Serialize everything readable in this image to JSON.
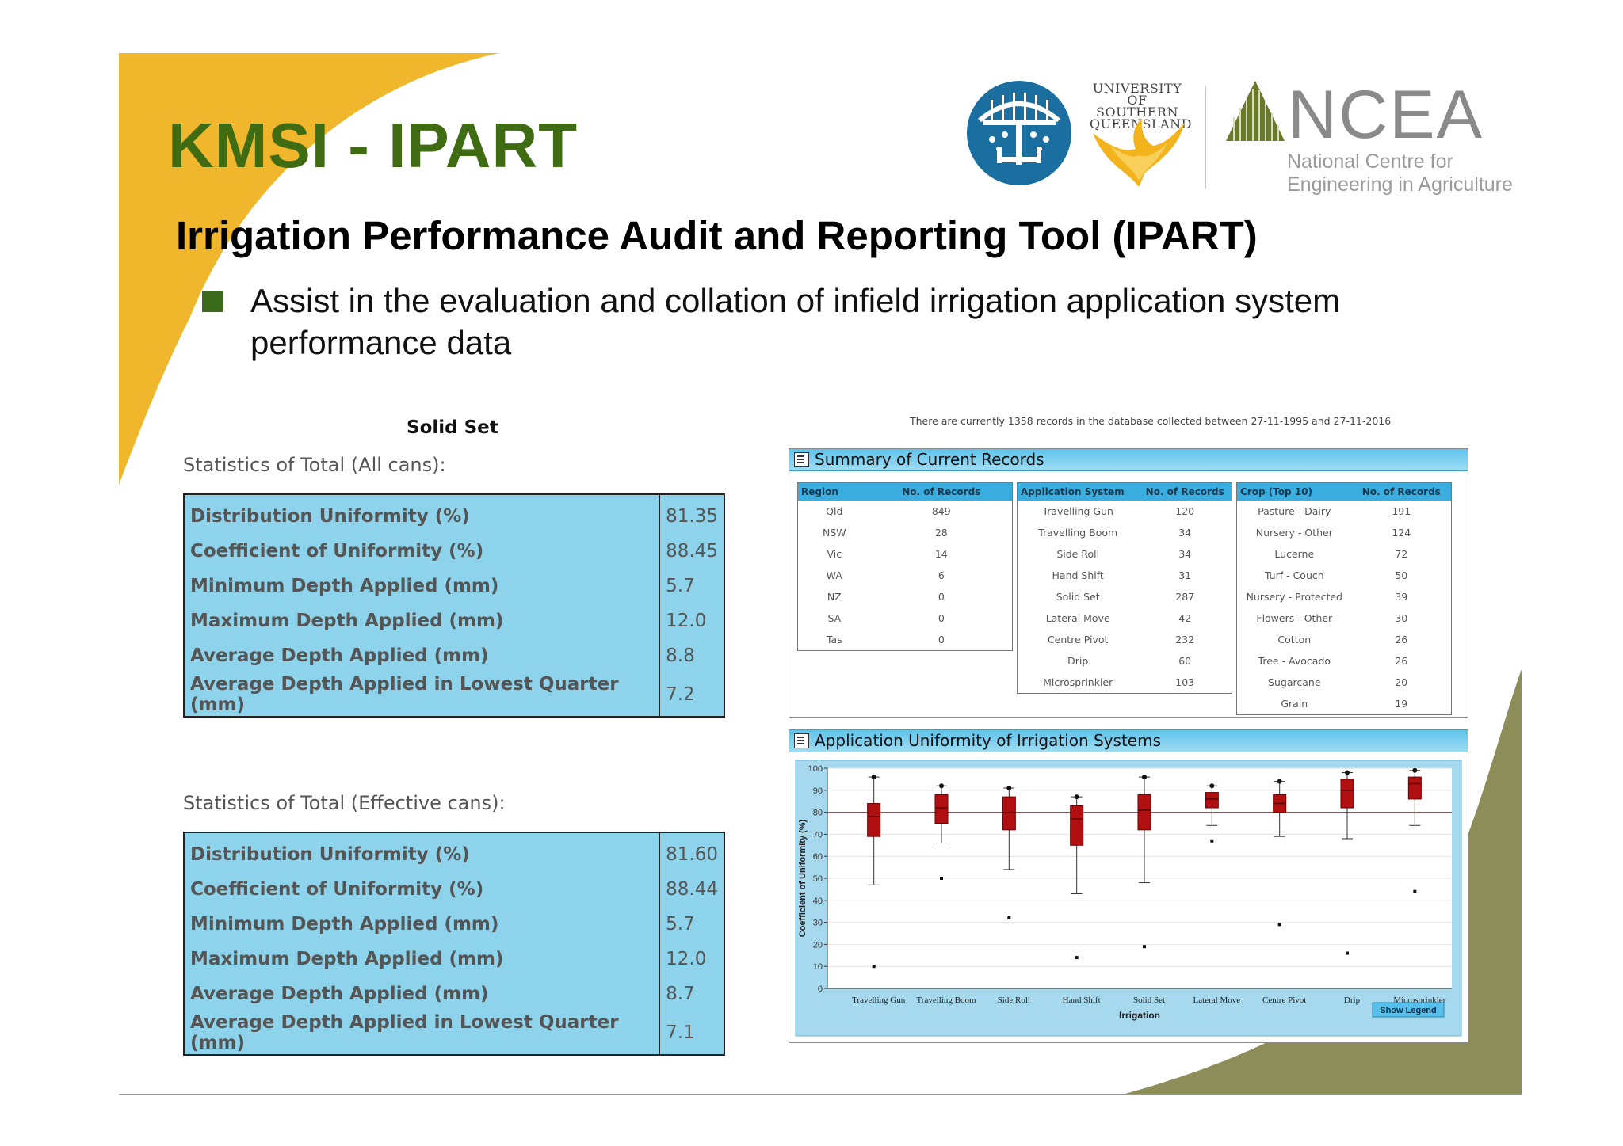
{
  "slide": {
    "title": "KMSI - IPART",
    "subtitle": "Irrigation Performance Audit and Reporting Tool (IPART)",
    "bullet": "Assist in the evaluation and collation of infield irrigation application system performance data"
  },
  "logos": {
    "usq": "UNIVERSITY OF SOUTHERN QUEENSLAND",
    "ncea_abbr": "NCEA",
    "ncea_full": "National Centre for Engineering in Agriculture"
  },
  "solid_set": {
    "heading": "Solid Set",
    "all_cans": {
      "caption": "Statistics of Total (All cans):",
      "rows": [
        {
          "label": "Distribution Uniformity (%)",
          "value": "81.35"
        },
        {
          "label": "Coefficient of Uniformity (%)",
          "value": "88.45"
        },
        {
          "label": "Minimum Depth Applied (mm)",
          "value": "5.7"
        },
        {
          "label": "Maximum Depth Applied (mm)",
          "value": "12.0"
        },
        {
          "label": "Average Depth Applied (mm)",
          "value": "8.8"
        },
        {
          "label": "Average Depth Applied in Lowest Quarter (mm)",
          "value": "7.2"
        }
      ]
    },
    "effective_cans": {
      "caption": "Statistics of Total (Effective cans):",
      "rows": [
        {
          "label": "Distribution Uniformity (%)",
          "value": "81.60"
        },
        {
          "label": "Coefficient of Uniformity (%)",
          "value": "88.44"
        },
        {
          "label": "Minimum Depth Applied (mm)",
          "value": "5.7"
        },
        {
          "label": "Maximum Depth Applied (mm)",
          "value": "12.0"
        },
        {
          "label": "Average Depth Applied (mm)",
          "value": "8.7"
        },
        {
          "label": "Average Depth Applied in Lowest Quarter (mm)",
          "value": "7.1"
        }
      ]
    }
  },
  "db_note": "There are currently 1358 records in the database collected between 27-11-1995 and 27-11-2016",
  "summary": {
    "title": "Summary of Current Records",
    "region": {
      "headers": [
        "Region",
        "No. of Records"
      ],
      "rows": [
        [
          "Qld",
          "849"
        ],
        [
          "NSW",
          "28"
        ],
        [
          "Vic",
          "14"
        ],
        [
          "WA",
          "6"
        ],
        [
          "NZ",
          "0"
        ],
        [
          "SA",
          "0"
        ],
        [
          "Tas",
          "0"
        ]
      ]
    },
    "application": {
      "headers": [
        "Application System",
        "No. of Records"
      ],
      "rows": [
        [
          "Travelling Gun",
          "120"
        ],
        [
          "Travelling Boom",
          "34"
        ],
        [
          "Side Roll",
          "34"
        ],
        [
          "Hand Shift",
          "31"
        ],
        [
          "Solid Set",
          "287"
        ],
        [
          "Lateral Move",
          "42"
        ],
        [
          "Centre Pivot",
          "232"
        ],
        [
          "Drip",
          "60"
        ],
        [
          "Microsprinkler",
          "103"
        ]
      ]
    },
    "crop": {
      "headers": [
        "Crop (Top 10)",
        "No. of Records"
      ],
      "rows": [
        [
          "Pasture - Dairy",
          "191"
        ],
        [
          "Nursery - Other",
          "124"
        ],
        [
          "Lucerne",
          "72"
        ],
        [
          "Turf - Couch",
          "50"
        ],
        [
          "Nursery - Protected",
          "39"
        ],
        [
          "Flowers - Other",
          "30"
        ],
        [
          "Cotton",
          "26"
        ],
        [
          "Tree - Avocado",
          "26"
        ],
        [
          "Sugarcane",
          "20"
        ],
        [
          "Grain",
          "19"
        ]
      ]
    }
  },
  "uniformity_panel": {
    "title": "Application Uniformity of Irrigation Systems",
    "show_legend_label": "Show Legend"
  },
  "chart_data": {
    "type": "boxplot",
    "title": "",
    "xlabel": "Irrigation",
    "ylabel": "Coefficient of Uniformity (%)",
    "ylim": [
      0,
      100
    ],
    "yticks": [
      0,
      10,
      20,
      30,
      40,
      50,
      60,
      70,
      80,
      90,
      100
    ],
    "reference_line": 80,
    "categories": [
      "Travelling Gun",
      "Travelling Boom",
      "Side Roll",
      "Hand Shift",
      "Solid Set",
      "Lateral Move",
      "Centre Pivot",
      "Drip",
      "Microsprinkler"
    ],
    "boxes": [
      {
        "max": 96,
        "whisker_high": 96,
        "q3": 84,
        "median": 78,
        "q1": 69,
        "whisker_low": 47,
        "outliers": [
          10
        ]
      },
      {
        "max": 92,
        "whisker_high": 92,
        "q3": 88,
        "median": 82,
        "q1": 75,
        "whisker_low": 66,
        "outliers": [
          50
        ]
      },
      {
        "max": 91,
        "whisker_high": 91,
        "q3": 87,
        "median": 80,
        "q1": 72,
        "whisker_low": 54,
        "outliers": [
          32
        ]
      },
      {
        "max": 87,
        "whisker_high": 87,
        "q3": 83,
        "median": 77,
        "q1": 65,
        "whisker_low": 43,
        "outliers": [
          14
        ]
      },
      {
        "max": 96,
        "whisker_high": 96,
        "q3": 88,
        "median": 81,
        "q1": 72,
        "whisker_low": 48,
        "outliers": [
          19
        ]
      },
      {
        "max": 92,
        "whisker_high": 92,
        "q3": 89,
        "median": 86,
        "q1": 82,
        "whisker_low": 74,
        "outliers": [
          67
        ]
      },
      {
        "max": 94,
        "whisker_high": 94,
        "q3": 88,
        "median": 84,
        "q1": 80,
        "whisker_low": 69,
        "outliers": [
          29
        ]
      },
      {
        "max": 98,
        "whisker_high": 98,
        "q3": 95,
        "median": 90,
        "q1": 82,
        "whisker_low": 68,
        "outliers": [
          16
        ]
      },
      {
        "max": 99,
        "whisker_high": 99,
        "q3": 96,
        "median": 93,
        "q1": 86,
        "whisker_low": 74,
        "outliers": [
          44
        ]
      }
    ],
    "colors": {
      "box": "#b01010",
      "reference": "#e03030",
      "plot_bg": "#ffffff",
      "frame_bg": "#a6d9ee"
    }
  }
}
